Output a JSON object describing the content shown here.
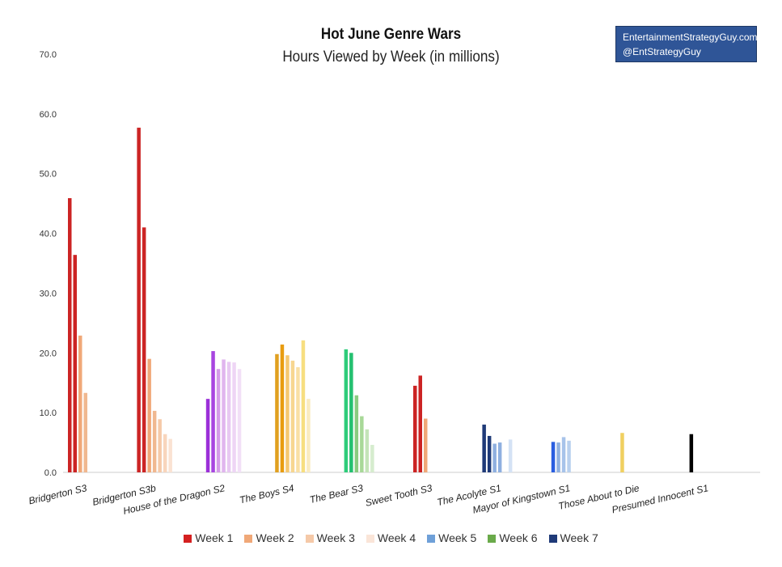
{
  "chart_data": {
    "type": "bar",
    "title": "Hot June Genre Wars",
    "subtitle": "Hours Viewed by Week (in millions)",
    "watermark": [
      "EntertainmentStrategyGuy.com",
      "@EntStrategyGuy"
    ],
    "ylim": [
      0,
      70
    ],
    "yticks": [
      "0.0",
      "10.0",
      "20.0",
      "30.0",
      "40.0",
      "50.0",
      "60.0",
      "70.0"
    ],
    "grid": false,
    "legend_position": "bottom",
    "legend": [
      "Week 1",
      "Week 2",
      "Week 3",
      "Week 4",
      "Week 5",
      "Week 6",
      "Week 7"
    ],
    "legend_colors": [
      "#d42020",
      "#f0a878",
      "#f5c9a8",
      "#fae5d8",
      "#6fa0d8",
      "#6aaa4a",
      "#1f3a78"
    ],
    "categories": [
      {
        "label": "Bridgerton S3",
        "values": [
          45.9,
          36.4,
          22.9,
          13.3
        ],
        "colors": [
          "#cc2424",
          "#cc2424",
          "#f0a878",
          "#f0b890"
        ]
      },
      {
        "label": "Bridgerton S3b",
        "values": [
          57.7,
          41.0,
          19.0,
          10.3,
          8.9,
          6.4,
          5.6
        ],
        "colors": [
          "#cc2424",
          "#cc2424",
          "#f0a878",
          "#f0b890",
          "#f5c9a8",
          "#f8d5bc",
          "#fae2d2"
        ]
      },
      {
        "label": "House of the Dragon S2",
        "values": [
          12.3,
          20.3,
          17.3,
          18.9,
          18.5,
          18.4,
          17.3
        ],
        "colors": [
          "#9b30d8",
          "#a845e0",
          "#d49ae8",
          "#e0b5ee",
          "#e8c8f2",
          "#eed5f5",
          "#f2dff7"
        ]
      },
      {
        "label": "The Boys S4",
        "values": [
          19.8,
          21.4,
          19.6,
          18.7,
          17.6,
          22.1,
          12.3
        ],
        "colors": [
          "#e0a020",
          "#e89c10",
          "#f5c870",
          "#f7d690",
          "#f9dfa4",
          "#f7de80",
          "#faebc0"
        ]
      },
      {
        "label": "The Bear S3",
        "values": [
          20.6,
          20.0,
          12.9,
          9.4,
          7.2,
          4.6
        ],
        "colors": [
          "#2ecc7a",
          "#24c070",
          "#8acb80",
          "#a8d898",
          "#c4e4b8",
          "#d6ecce"
        ]
      },
      {
        "label": "Sweet Tooth S3",
        "values": [
          14.5,
          16.2,
          9.0
        ],
        "colors": [
          "#cc2424",
          "#cc2424",
          "#f0a878"
        ]
      },
      {
        "label": "The Acolyte S1",
        "values": [
          8.0,
          6.1,
          4.8,
          5.0,
          0,
          5.5
        ],
        "colors": [
          "#1f3a78",
          "#1f3a78",
          "#8fb0e0",
          "#8fb0e0",
          "#ffffff",
          "#d4e2f5"
        ]
      },
      {
        "label": "Mayor of Kingstown S1",
        "values": [
          5.1,
          5.0,
          5.9,
          5.3
        ],
        "colors": [
          "#2a5ee0",
          "#8fb0e0",
          "#a7c3ea",
          "#b8d0ee"
        ]
      },
      {
        "label": "Those About to Die",
        "values": [
          6.6
        ],
        "colors": [
          "#f0d060"
        ]
      },
      {
        "label": "Presumed Innocent S1",
        "values": [
          6.4
        ],
        "colors": [
          "#000000"
        ]
      }
    ]
  }
}
